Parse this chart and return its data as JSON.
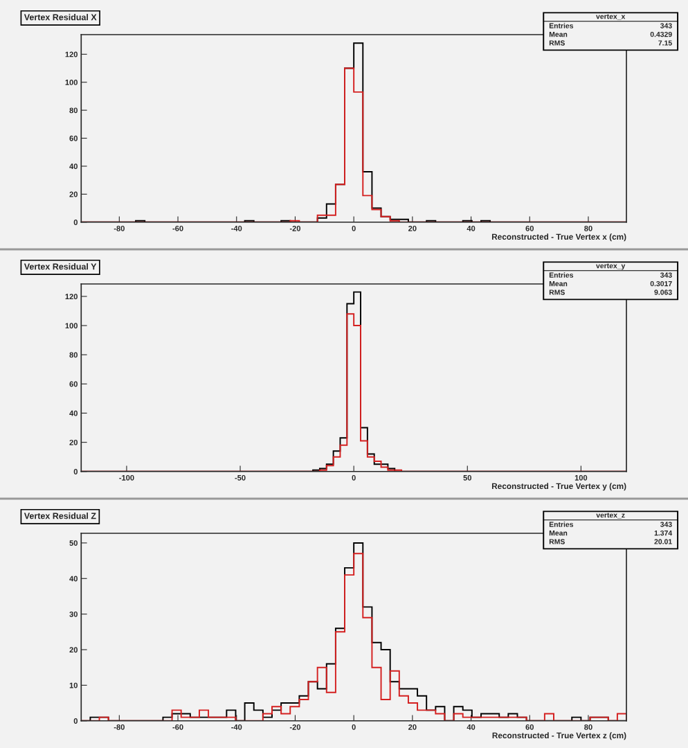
{
  "chart_data": [
    {
      "type": "histogram",
      "title": "Vertex Residual X",
      "xlabel": "Reconstructed - True Vertex x (cm)",
      "annotations": [
        "vertex_x",
        "Entries",
        "343",
        "Mean",
        "0.4329",
        "RMS",
        "7.15"
      ],
      "bins": [
        -93,
        -89.9,
        -86.8,
        -83.7,
        -80.6,
        -77.5,
        -74.4,
        -71.3,
        -68.2,
        -65.1,
        -62,
        -58.9,
        -55.8,
        -52.7,
        -49.6,
        -46.5,
        -43.4,
        -40.3,
        -37.2,
        -34.1,
        -31,
        -27.9,
        -24.8,
        -21.7,
        -18.6,
        -15.5,
        -12.4,
        -9.3,
        -6.2,
        -3.1,
        0,
        3.1,
        6.2,
        9.3,
        12.4,
        15.5,
        18.6,
        21.7,
        24.8,
        27.9,
        31,
        34.1,
        37.2,
        40.3,
        43.4,
        46.5,
        49.6,
        52.7,
        55.8,
        58.9,
        62,
        65.1,
        68.2,
        71.3,
        74.4,
        77.5,
        80.6,
        83.7,
        86.8,
        89.9,
        93
      ],
      "series": [
        {
          "color": "#000000",
          "values": [
            0,
            0,
            0,
            0,
            0,
            0,
            1,
            0,
            0,
            0,
            0,
            0,
            0,
            0,
            0,
            0,
            0,
            0,
            1,
            0,
            0,
            0,
            1,
            0,
            0,
            0,
            3,
            13,
            27,
            110,
            128,
            36,
            10,
            4,
            2,
            2,
            0,
            0,
            1,
            0,
            0,
            0,
            1,
            0,
            1,
            0,
            0,
            0,
            0,
            0,
            0,
            0,
            0,
            0,
            0,
            0,
            0,
            0,
            0,
            0
          ]
        },
        {
          "color": "#d42020",
          "values": [
            0,
            0,
            0,
            0,
            0,
            0,
            0,
            0,
            0,
            0,
            0,
            0,
            0,
            0,
            0,
            0,
            0,
            0,
            0,
            0,
            0,
            0,
            0,
            1,
            0,
            0,
            5,
            5,
            27,
            110,
            93,
            19,
            9,
            4,
            1,
            0,
            0,
            0,
            0,
            0,
            0,
            0,
            0,
            0,
            0,
            0,
            0,
            0,
            0,
            0,
            0,
            0,
            0,
            0,
            0,
            0,
            0,
            0,
            0,
            0
          ]
        }
      ],
      "xlim": [
        -93,
        93
      ],
      "ylim": [
        0,
        134
      ],
      "xticks": [
        -80,
        -60,
        -40,
        -20,
        0,
        20,
        40,
        60,
        80
      ],
      "yticks": [
        0,
        20,
        40,
        60,
        80,
        100,
        120
      ],
      "grid": false
    },
    {
      "type": "histogram",
      "title": "Vertex Residual Y",
      "xlabel": "Reconstructed - True Vertex y (cm)",
      "annotations": [
        "vertex_y",
        "Entries",
        "343",
        "Mean",
        "0.3017",
        "RMS",
        "9.063"
      ],
      "bins": [
        -120,
        -117,
        -114,
        -111,
        -108,
        -105,
        -102,
        -99,
        -96,
        -93,
        -90,
        -87,
        -84,
        -81,
        -78,
        -75,
        -72,
        -69,
        -66,
        -63,
        -60,
        -57,
        -54,
        -51,
        -48,
        -45,
        -42,
        -39,
        -36,
        -33,
        -30,
        -27,
        -24,
        -21,
        -18,
        -15,
        -12,
        -9,
        -6,
        -3,
        0,
        3,
        6,
        9,
        12,
        15,
        18,
        21,
        24,
        27,
        30,
        33,
        36,
        39,
        42,
        45,
        48,
        51,
        54,
        57,
        60,
        63,
        66,
        69,
        72,
        75,
        78,
        81,
        84,
        87,
        90,
        93,
        96,
        99,
        102,
        105,
        108,
        111,
        114,
        117,
        120
      ],
      "series": [
        {
          "color": "#000000",
          "values": [
            0,
            0,
            0,
            0,
            0,
            0,
            0,
            0,
            0,
            0,
            0,
            0,
            0,
            0,
            0,
            0,
            0,
            0,
            0,
            0,
            0,
            0,
            0,
            0,
            0,
            0,
            0,
            0,
            0,
            0,
            0,
            0,
            0,
            0,
            1,
            2,
            5,
            14,
            23,
            115,
            123,
            30,
            12,
            5,
            5,
            2,
            0,
            0,
            0,
            0,
            0,
            0,
            0,
            0,
            0,
            0,
            0,
            0,
            0,
            0,
            0,
            0,
            0,
            0,
            0,
            0,
            0,
            0,
            0,
            0,
            0,
            0,
            0,
            0,
            0,
            0,
            0,
            0,
            0,
            0
          ]
        },
        {
          "color": "#d42020",
          "values": [
            0,
            0,
            0,
            0,
            0,
            0,
            0,
            0,
            0,
            0,
            0,
            0,
            0,
            0,
            0,
            0,
            0,
            0,
            0,
            0,
            0,
            0,
            0,
            0,
            0,
            0,
            0,
            0,
            0,
            0,
            0,
            0,
            0,
            0,
            0,
            1,
            4,
            10,
            18,
            108,
            100,
            21,
            10,
            7,
            3,
            1,
            1,
            0,
            0,
            0,
            0,
            0,
            0,
            0,
            0,
            0,
            0,
            0,
            0,
            0,
            0,
            0,
            0,
            0,
            0,
            0,
            0,
            0,
            0,
            0,
            0,
            0,
            0,
            0,
            0,
            0,
            0,
            0,
            0,
            0
          ]
        }
      ],
      "xlim": [
        -120,
        120
      ],
      "ylim": [
        0,
        128.5
      ],
      "xticks": [
        -100,
        -50,
        0,
        50,
        100
      ],
      "yticks": [
        0,
        20,
        40,
        60,
        80,
        100,
        120
      ],
      "grid": false
    },
    {
      "type": "histogram",
      "title": "Vertex Residual Z",
      "xlabel": "Reconstructed - True Vertex z (cm)",
      "annotations": [
        "vertex_z",
        "Entries",
        "343",
        "Mean",
        "1.374",
        "RMS",
        "20.01"
      ],
      "bins": [
        -93,
        -89.9,
        -86.8,
        -83.7,
        -80.6,
        -77.5,
        -74.4,
        -71.3,
        -68.2,
        -65.1,
        -62,
        -58.9,
        -55.8,
        -52.7,
        -49.6,
        -46.5,
        -43.4,
        -40.3,
        -37.2,
        -34.1,
        -31,
        -27.9,
        -24.8,
        -21.7,
        -18.6,
        -15.5,
        -12.4,
        -9.3,
        -6.2,
        -3.1,
        0,
        3.1,
        6.2,
        9.3,
        12.4,
        15.5,
        18.6,
        21.7,
        24.8,
        27.9,
        31,
        34.1,
        37.2,
        40.3,
        43.4,
        46.5,
        49.6,
        52.7,
        55.8,
        58.9,
        62,
        65.1,
        68.2,
        71.3,
        74.4,
        77.5,
        80.6,
        83.7,
        86.8,
        89.9,
        93
      ],
      "series": [
        {
          "color": "#000000",
          "values": [
            0,
            1,
            1,
            0,
            0,
            0,
            0,
            0,
            0,
            1,
            2,
            2,
            1,
            1,
            1,
            1,
            3,
            0,
            5,
            3,
            1,
            3,
            5,
            5,
            7,
            11,
            9,
            16,
            26,
            43,
            50,
            32,
            22,
            20,
            11,
            9,
            9,
            7,
            3,
            4,
            0,
            4,
            3,
            1,
            2,
            2,
            1,
            2,
            1,
            0,
            0,
            0,
            0,
            0,
            1,
            0,
            1,
            1,
            0,
            0
          ]
        },
        {
          "color": "#d42020",
          "values": [
            0,
            0,
            1,
            0,
            0,
            0,
            0,
            0,
            0,
            0,
            3,
            1,
            1,
            3,
            1,
            1,
            1,
            0,
            0,
            0,
            2,
            4,
            2,
            4,
            6,
            11,
            15,
            8,
            25,
            41,
            47,
            29,
            15,
            6,
            14,
            7,
            5,
            3,
            3,
            2,
            0,
            2,
            1,
            1,
            1,
            1,
            1,
            1,
            1,
            0,
            0,
            2,
            0,
            0,
            0,
            0,
            1,
            1,
            0,
            2
          ]
        }
      ],
      "xlim": [
        -93,
        93
      ],
      "ylim": [
        0,
        52.7
      ],
      "xticks": [
        -80,
        -60,
        -40,
        -20,
        0,
        20,
        40,
        60,
        80
      ],
      "yticks": [
        0,
        10,
        20,
        30,
        40,
        50
      ],
      "grid": false
    }
  ]
}
